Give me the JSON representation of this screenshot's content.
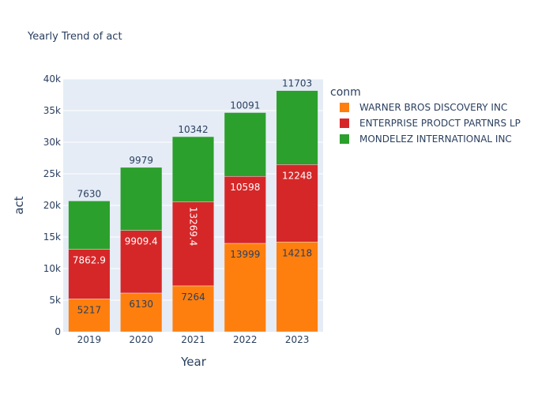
{
  "chart_data": {
    "type": "bar",
    "barmode": "stack",
    "title": "Yearly Trend of act",
    "xlabel": "Year",
    "ylabel": "act",
    "categories": [
      "2019",
      "2020",
      "2021",
      "2022",
      "2023"
    ],
    "ylim": [
      0,
      40000
    ],
    "yticks": [
      0,
      5000,
      10000,
      15000,
      20000,
      25000,
      30000,
      35000,
      40000
    ],
    "ytick_labels": [
      "0",
      "5k",
      "10k",
      "15k",
      "20k",
      "25k",
      "30k",
      "35k",
      "40k"
    ],
    "grid": true,
    "legend_title": "conm",
    "legend_position": "right",
    "series": [
      {
        "name": "WARNER BROS DISCOVERY INC",
        "color": "#ff7f0e",
        "values": [
          5217,
          6130,
          7264,
          13999,
          14218
        ],
        "labels": [
          "5217",
          "6130",
          "7264",
          "13999",
          "14218"
        ],
        "label_color": "#2a3f5f"
      },
      {
        "name": "ENTERPRISE PRODCT PARTNRS LP",
        "color": "#d62728",
        "values": [
          7862.9,
          9909.4,
          13269.4,
          10598,
          12248
        ],
        "labels": [
          "7862.9",
          "9909.4",
          "13269.4",
          "10598",
          "12248"
        ],
        "label_color": "#ffffff"
      },
      {
        "name": "MONDELEZ INTERNATIONAL INC",
        "color": "#2ca02c",
        "values": [
          7630,
          9979,
          10342,
          10091,
          11703
        ],
        "labels": [
          "7630",
          "9979",
          "10342",
          "10091",
          "11703"
        ],
        "label_color": "#2a3f5f"
      }
    ]
  }
}
